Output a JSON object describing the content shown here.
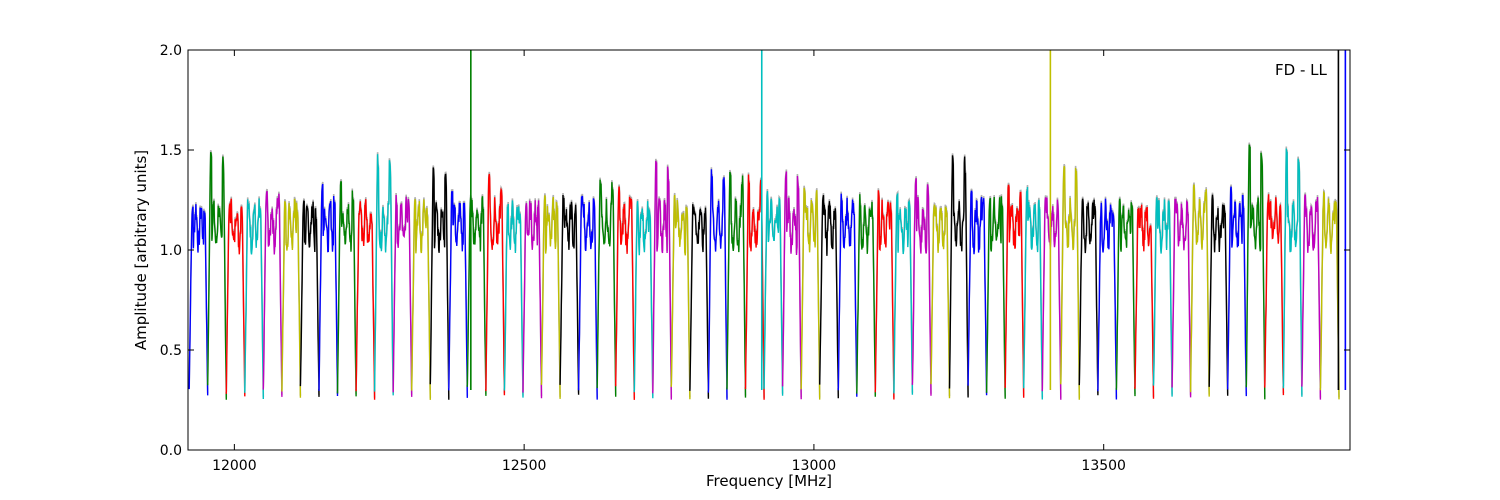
{
  "chart_data": {
    "type": "line",
    "title": "",
    "xlabel": "Frequency [MHz]",
    "ylabel": "Amplitude [arbitrary units]",
    "annotation": "FD - LL",
    "xlim": [
      11920,
      13925
    ],
    "ylim": [
      0.0,
      2.0
    ],
    "xticks": [
      12000,
      12500,
      13000,
      13500
    ],
    "yticks": [
      0.0,
      0.5,
      1.0,
      1.5,
      2.0
    ],
    "ytick_labels": [
      "0.0",
      "0.5",
      "1.0",
      "1.5",
      "2.0"
    ],
    "grid": false,
    "channel_width_mhz": 32,
    "first_channel_start_mhz": 11922,
    "color_cycle": [
      "#0000ff",
      "#008000",
      "#ff0000",
      "#00bfbf",
      "#bf00bf",
      "#bfbf00",
      "#000000"
    ],
    "shadow_color": "#b0b0b0",
    "channel_peaks": [
      1.25,
      1.5,
      1.27,
      1.28,
      1.33,
      1.28,
      1.27,
      1.33,
      1.35,
      1.22,
      1.48,
      1.3,
      1.28,
      1.42,
      1.3,
      1.3,
      1.4,
      1.25,
      1.28,
      1.32,
      1.28,
      1.3,
      1.37,
      1.35,
      1.25,
      1.45,
      1.28,
      1.25,
      1.42,
      1.42,
      1.38,
      1.3,
      1.42,
      1.34,
      1.28,
      1.3,
      1.28,
      1.3,
      1.3,
      1.38,
      1.28,
      1.5,
      1.3,
      1.3,
      1.35,
      1.32,
      1.3,
      1.45,
      1.3,
      1.25,
      1.3,
      1.22,
      1.3,
      1.28,
      1.35,
      1.28,
      1.32,
      1.55,
      1.3,
      1.52,
      1.3,
      1.3
    ],
    "spikes": [
      {
        "x": 12408,
        "ymax": 2.0,
        "color": "#008000"
      },
      {
        "x": 12910,
        "ymax": 2.0,
        "color": "#00bfbf"
      },
      {
        "x": 13408,
        "ymax": 2.0,
        "color": "#bfbf00"
      },
      {
        "x": 13905,
        "ymax": 2.0,
        "color": "#000000"
      },
      {
        "x": 13917,
        "ymax": 2.0,
        "color": "#0000ff"
      }
    ]
  }
}
